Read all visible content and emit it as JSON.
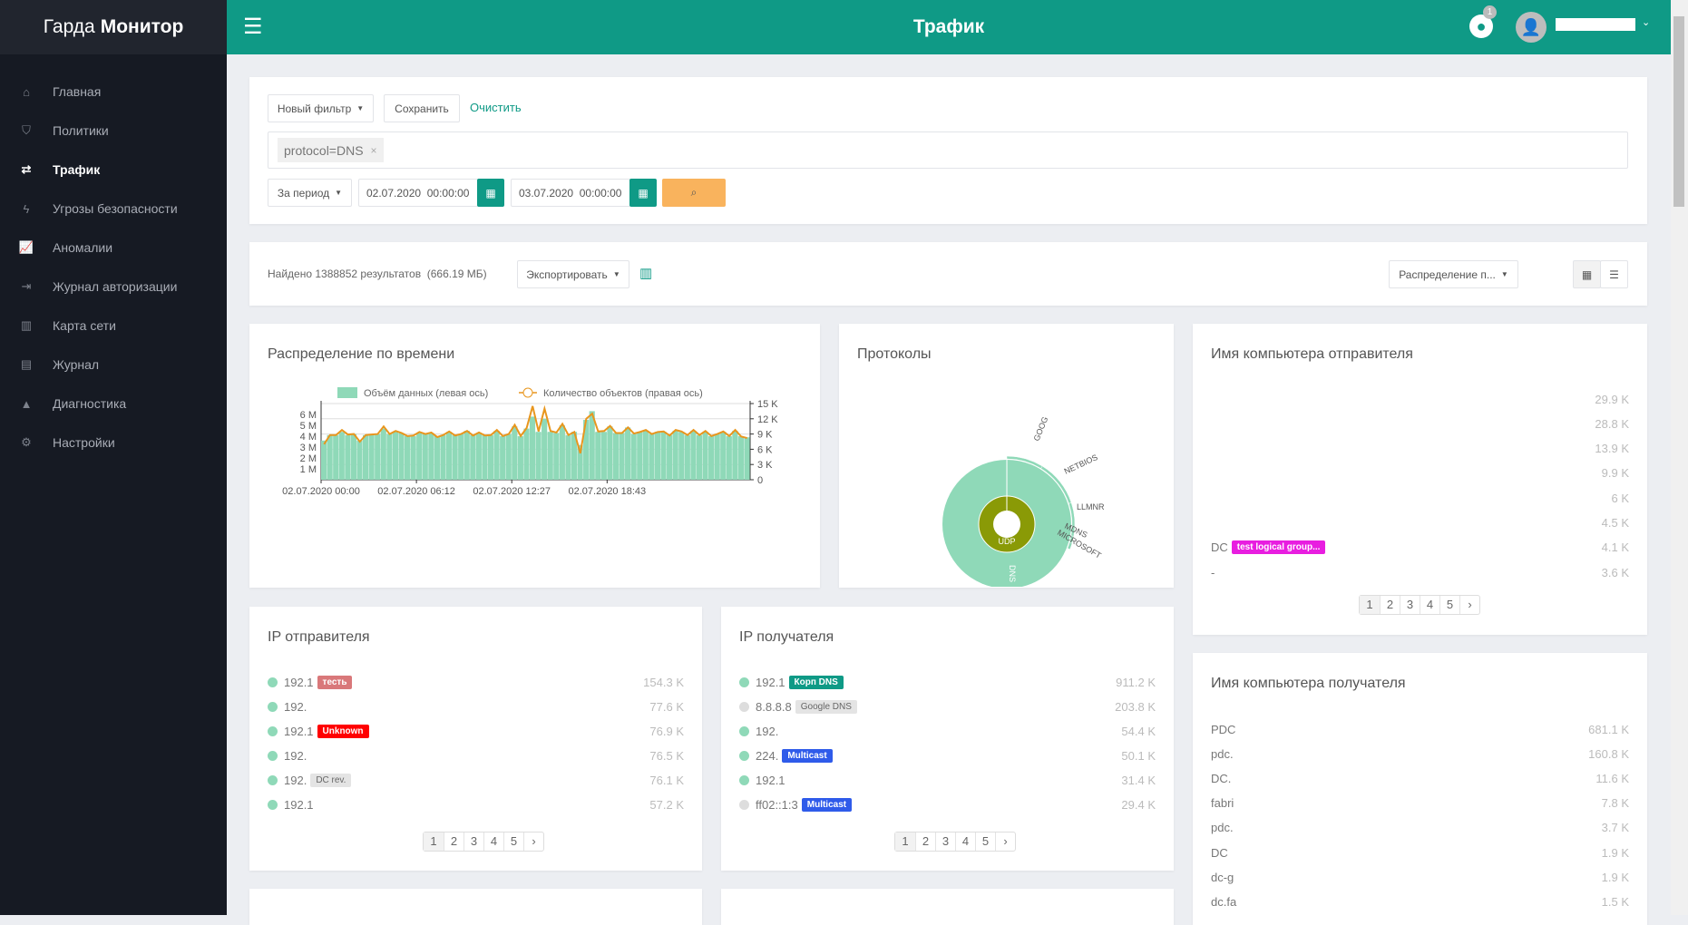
{
  "app": {
    "logo_light": "Гарда",
    "logo_bold": "Монитор",
    "page_title": "Трафик",
    "notification_count": "1",
    "user_name": ""
  },
  "sidebar": {
    "items": [
      {
        "label": "Главная",
        "icon": "home-icon",
        "glyph": "⌂"
      },
      {
        "label": "Политики",
        "icon": "shield-icon",
        "glyph": "⛉"
      },
      {
        "label": "Трафик",
        "icon": "exchange-icon",
        "glyph": "⇄",
        "active": true
      },
      {
        "label": "Угрозы безопасности",
        "icon": "bolt-icon",
        "glyph": "ϟ"
      },
      {
        "label": "Аномалии",
        "icon": "line-chart-icon",
        "glyph": "📈"
      },
      {
        "label": "Журнал авторизации",
        "icon": "sign-in-icon",
        "glyph": "⇥"
      },
      {
        "label": "Карта сети",
        "icon": "map-icon",
        "glyph": "▥"
      },
      {
        "label": "Журнал",
        "icon": "book-icon",
        "glyph": "▤"
      },
      {
        "label": "Диагностика",
        "icon": "warning-icon",
        "glyph": "▲"
      },
      {
        "label": "Настройки",
        "icon": "gear-icon",
        "glyph": "⚙"
      }
    ]
  },
  "filter": {
    "new_filter": "Новый фильтр",
    "save": "Сохранить",
    "clear": "Очистить",
    "chip": "protocol=DNS",
    "period": "За период",
    "date_from": "02.07.2020  00:00:00",
    "date_to": "03.07.2020  00:00:00"
  },
  "results": {
    "found": "Найдено 1388852 результатов",
    "size": "(666.19 МБ)",
    "export": "Экспортировать",
    "distribution": "Распределение п..."
  },
  "colors": {
    "accent": "#0f9a86",
    "search": "#f9b35d",
    "area": "#8fd9b8",
    "line": "#e8961e",
    "udp": "#8a9a06"
  },
  "chart_data": [
    {
      "type": "area",
      "title": "Распределение по времени",
      "legend": [
        "Объём данных (левая ось)",
        "Количество объектов (правая ось)"
      ],
      "left_ticks": [
        "1 M",
        "2 M",
        "3 M",
        "4 M",
        "5 M",
        "6 M"
      ],
      "left_ylim": [
        0,
        7
      ],
      "right_ticks": [
        "0",
        "3 K",
        "6 K",
        "9 K",
        "12 K",
        "15 K"
      ],
      "right_ylim": [
        0,
        15
      ],
      "x_labels": [
        "02.07.2020 00:00",
        "02.07.2020 06:12",
        "02.07.2020 12:27",
        "02.07.2020 18:43"
      ],
      "volume_m": [
        3.6,
        4.1,
        4.1,
        4.4,
        4.1,
        4.2,
        3.6,
        4.1,
        4.2,
        4.2,
        4.7,
        4.2,
        4.4,
        4.3,
        4.0,
        4.0,
        4.3,
        4.2,
        4.3,
        4.0,
        4.1,
        4.4,
        4.1,
        4.2,
        4.5,
        4.1,
        4.3,
        4.1,
        4.1,
        4.5,
        4.0,
        4.2,
        4.9,
        4.0,
        4.7,
        5.8,
        4.4,
        5.6,
        4.4,
        4.3,
        5.0,
        4.1,
        4.4,
        3.2,
        5.5,
        6.3,
        4.4,
        4.4,
        4.9,
        4.3,
        4.3,
        4.8,
        4.2,
        4.4,
        4.5,
        4.2,
        4.4,
        4.4,
        4.1,
        4.5,
        4.4,
        4.1,
        4.5,
        4.1,
        4.4,
        4.0,
        4.2,
        4.4,
        4.0,
        4.5,
        4.0,
        3.9
      ],
      "count_k": [
        7,
        8.8,
        8.8,
        9.8,
        8.9,
        9,
        7.5,
        8.8,
        8.9,
        9,
        10.5,
        9,
        9.6,
        9.2,
        8.6,
        8.7,
        9.4,
        9,
        9.3,
        8.4,
        8.8,
        9.5,
        8.7,
        9,
        9.6,
        8.7,
        9.3,
        8.7,
        8.8,
        9.8,
        8.6,
        9,
        10.8,
        8.6,
        10.2,
        14.5,
        9.5,
        14,
        9.6,
        9.3,
        11,
        8.8,
        9.4,
        5.2,
        12,
        13,
        9.5,
        9.6,
        10.6,
        9.2,
        9.2,
        10.3,
        9.1,
        9.4,
        9.8,
        9,
        9.4,
        9.5,
        8.7,
        9.8,
        9.5,
        8.8,
        9.8,
        8.8,
        9.6,
        8.6,
        9,
        9.5,
        8.6,
        9.8,
        8.5,
        8.2
      ]
    },
    {
      "type": "sunburst",
      "title": "Протоколы",
      "inner": {
        "label": "UDP",
        "share": 1
      },
      "outer": [
        {
          "label": "DNS",
          "share": 0.7
        },
        {
          "label": "GOOG",
          "share": 0.005
        },
        {
          "label": "NETBIOS",
          "share": 0.12
        },
        {
          "label": "LLMNR",
          "share": 0.12
        },
        {
          "label": "MDNS",
          "share": 0.01
        },
        {
          "label": "MICROSOFT",
          "share": 0.01
        }
      ]
    }
  ],
  "sender_hosts": {
    "title": "Имя компьютера отправителя",
    "rows": [
      {
        "name": "",
        "value": "29.9 K"
      },
      {
        "name": "",
        "value": "28.8 K"
      },
      {
        "name": "",
        "value": "13.9 K"
      },
      {
        "name": "",
        "value": "9.9 K"
      },
      {
        "name": "",
        "value": "6 K"
      },
      {
        "name": "",
        "value": "4.5 K"
      },
      {
        "name": "DC",
        "tag": "test logical group...",
        "tag_color": "#e81ee0",
        "value": "4.1 K"
      },
      {
        "name": "-",
        "value": "3.6 K"
      }
    ]
  },
  "sender_ip": {
    "title": "IP отправителя",
    "rows": [
      {
        "name": "192.1",
        "tag": "тесть",
        "tag_color": "#d9787a",
        "value": "154.3 K"
      },
      {
        "name": "192.",
        "value": "77.6 K"
      },
      {
        "name": "192.1",
        "tag": "Unknown",
        "tag_color": "#ff0000",
        "value": "76.9 K"
      },
      {
        "name": "192.",
        "value": "76.5 K"
      },
      {
        "name": "192.",
        "tag": "DC rev.",
        "tag_color": "#e4e4e4",
        "tag_text": "#666",
        "value": "76.1 K"
      },
      {
        "name": "192.1",
        "value": "57.2 K"
      }
    ]
  },
  "recipient_ip": {
    "title": "IP получателя",
    "rows": [
      {
        "name": "192.1",
        "tag": "Корп DNS",
        "tag_color": "#0f9a86",
        "value": "911.2 K"
      },
      {
        "name": "8.8.8.8",
        "tag": "Google DNS",
        "tag_color": "#e4e4e4",
        "tag_text": "#666",
        "gray": true,
        "value": "203.8 K"
      },
      {
        "name": "192.",
        "value": "54.4 K"
      },
      {
        "name": "224.",
        "tag": "Multicast",
        "tag_color": "#2f5bea",
        "value": "50.1 K"
      },
      {
        "name": "192.1",
        "value": "31.4 K"
      },
      {
        "name": "ff02::1:3",
        "tag": "Multicast",
        "tag_color": "#2f5bea",
        "gray": true,
        "value": "29.4 K"
      }
    ]
  },
  "recipient_hosts": {
    "title": "Имя компьютера получателя",
    "rows": [
      {
        "name": "PDC",
        "value": "681.1 K"
      },
      {
        "name": "pdc.",
        "value": "160.8 K"
      },
      {
        "name": "DC.",
        "value": "11.6 K"
      },
      {
        "name": "fabri",
        "value": "7.8 K"
      },
      {
        "name": "pdc.",
        "value": "3.7 K"
      },
      {
        "name": "DC",
        "value": "1.9 K"
      },
      {
        "name": "dc-g",
        "value": "1.9 K"
      },
      {
        "name": "dc.fa",
        "value": "1.5 K"
      }
    ]
  },
  "pagination": [
    "1",
    "2",
    "3",
    "4",
    "5",
    "›"
  ]
}
